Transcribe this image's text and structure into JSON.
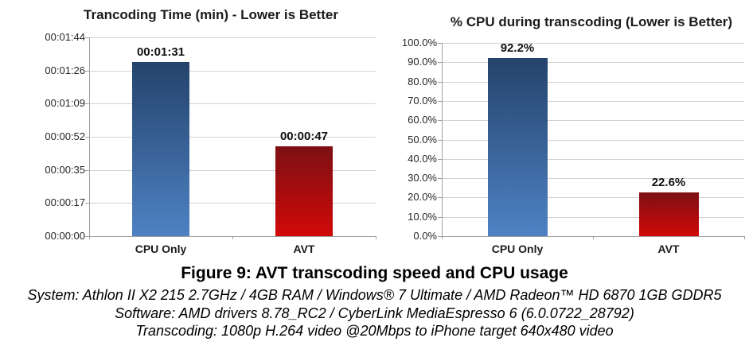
{
  "figure": {
    "caption_title": "Figure 9: AVT transcoding speed and CPU usage",
    "caption_lines": [
      "System: Athlon II X2 215 2.7GHz / 4GB RAM / Windows® 7 Ultimate / AMD Radeon™ HD 6870 1GB GDDR5",
      "Software: AMD drivers 8.78_RC2 / CyberLink MediaEspresso 6 (6.0.0722_28792)",
      "Transcoding: 1080p H.264 video @20Mbps to iPhone target 640x480 video"
    ]
  },
  "colors": {
    "bar_blue_top": "#24436b",
    "bar_blue_bottom": "#4e82c4",
    "bar_red_top": "#7c1013",
    "bar_red_bottom": "#d20909",
    "gridline": "#d2d2d2",
    "axis_line": "#9e9e9e",
    "text": "#1b1b1b"
  },
  "chart_data": [
    {
      "type": "bar",
      "title": "Trancoding Time (min) - Lower is Better",
      "categories": [
        "CPU Only",
        "AVT"
      ],
      "values": [
        91,
        47
      ],
      "value_unit": "seconds",
      "data_labels": [
        "00:01:31",
        "00:00:47"
      ],
      "series_colors": [
        "blue",
        "red"
      ],
      "ylim": [
        0,
        104
      ],
      "ytick_labels": [
        "00:00:00",
        "00:00:17",
        "00:00:35",
        "00:00:52",
        "00:01:09",
        "00:01:26",
        "00:01:44"
      ],
      "grid": "horizontal",
      "legend": "none"
    },
    {
      "type": "bar",
      "title": "% CPU during transcoding (Lower is Better)",
      "categories": [
        "CPU Only",
        "AVT"
      ],
      "values": [
        92.2,
        22.6
      ],
      "value_unit": "percent",
      "data_labels": [
        "92.2%",
        "22.6%"
      ],
      "series_colors": [
        "blue",
        "red"
      ],
      "ylim": [
        0,
        100
      ],
      "ytick_labels": [
        "0.0%",
        "10.0%",
        "20.0%",
        "30.0%",
        "40.0%",
        "50.0%",
        "60.0%",
        "70.0%",
        "80.0%",
        "90.0%",
        "100.0%"
      ],
      "grid": "horizontal",
      "legend": "none"
    }
  ]
}
